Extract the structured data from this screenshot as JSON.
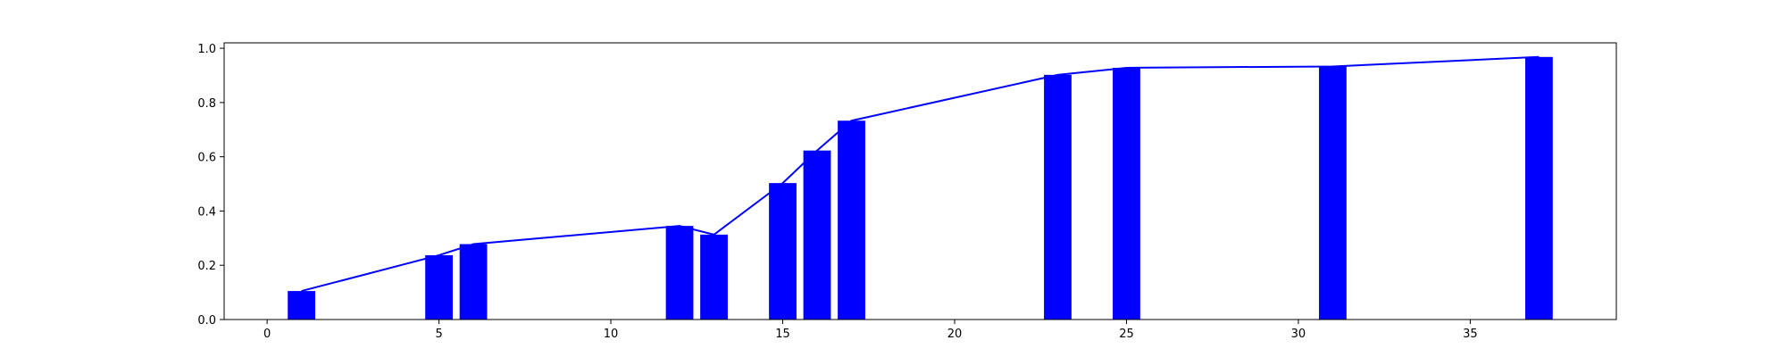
{
  "chart_data": {
    "type": "bar",
    "title": "",
    "xlabel": "",
    "ylabel": "",
    "xlim": [
      -1.25,
      39.25
    ],
    "ylim": [
      0.0,
      1.02
    ],
    "grid": false,
    "legend": "none",
    "bar_color": "#0000ff",
    "line_color": "#0000ff",
    "x": [
      1,
      5,
      6,
      12,
      13,
      15,
      16,
      17,
      23,
      25,
      31,
      37
    ],
    "values": [
      0.105,
      0.237,
      0.278,
      0.345,
      0.313,
      0.503,
      0.623,
      0.733,
      0.902,
      0.928,
      0.933,
      0.968
    ],
    "bar_width": 0.8,
    "xticks": [
      0,
      5,
      10,
      15,
      20,
      25,
      30,
      35
    ],
    "xtick_labels": [
      "0",
      "5",
      "10",
      "15",
      "20",
      "25",
      "30",
      "35"
    ],
    "yticks": [
      0.0,
      0.2,
      0.4,
      0.6,
      0.8,
      1.0
    ],
    "ytick_labels": [
      "0.0",
      "0.2",
      "0.4",
      "0.6",
      "0.8",
      "1.0"
    ]
  }
}
